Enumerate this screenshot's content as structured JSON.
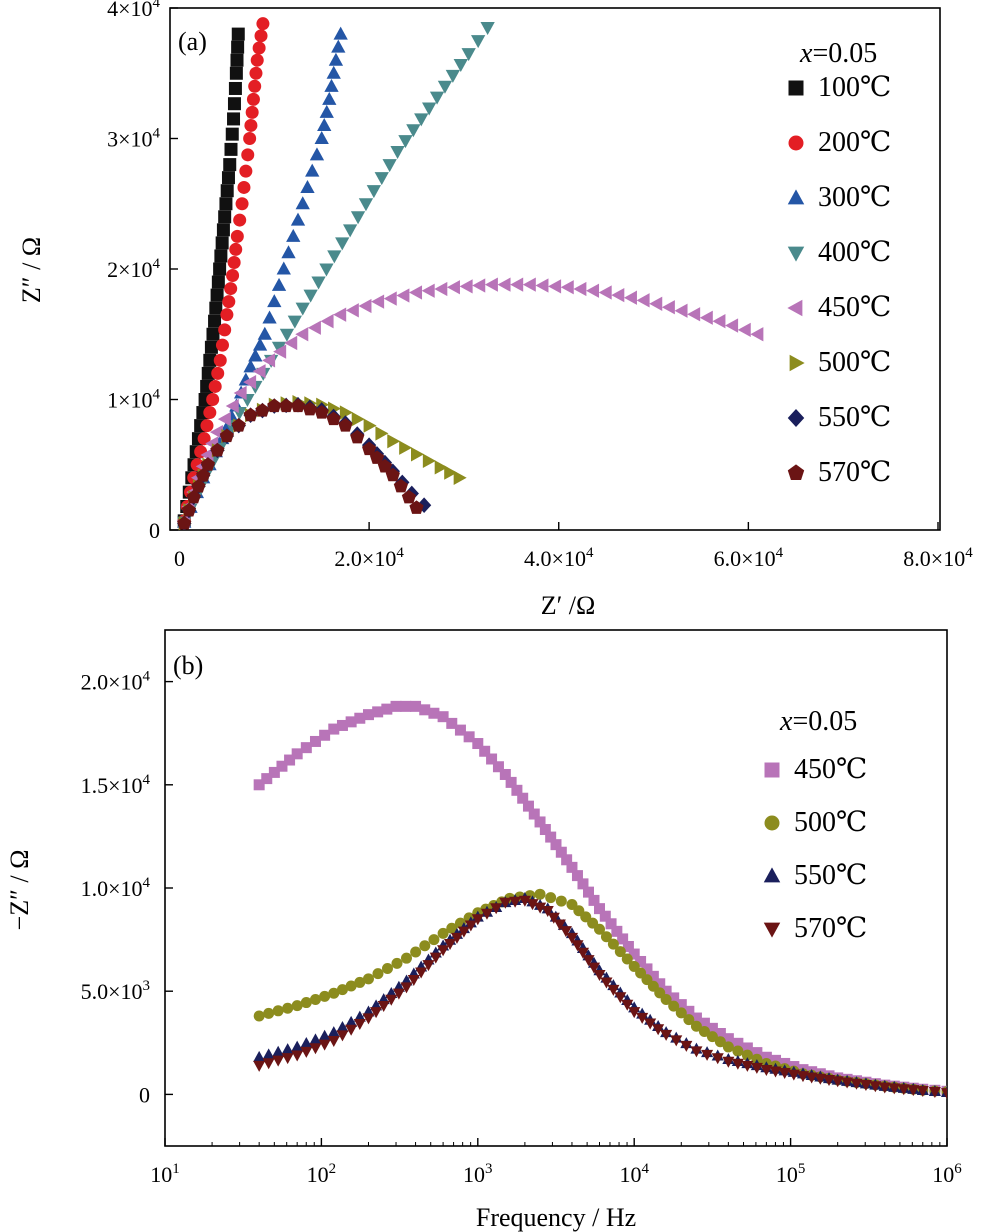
{
  "chart_data": [
    {
      "type": "scatter",
      "panel_label": "(a)",
      "xlabel": "Z′ /Ω",
      "ylabel": "Z″ / Ω",
      "xlim": [
        -1000,
        80000
      ],
      "ylim": [
        0,
        40000
      ],
      "x_ticks": [
        0,
        20000,
        40000,
        60000,
        80000
      ],
      "x_tick_labels": [
        "0",
        "2.0×10",
        "4.0×10",
        "6.0×10",
        "8.0×10"
      ],
      "x_tick_exps": [
        "",
        "4",
        "4",
        "4",
        "4"
      ],
      "y_ticks": [
        0,
        10000,
        20000,
        30000,
        40000
      ],
      "y_tick_labels": [
        "0",
        "1×10",
        "2×10",
        "3×10",
        "4×10"
      ],
      "y_tick_exps": [
        "",
        "4",
        "4",
        "4",
        "4"
      ],
      "legend_title": "x=0.05",
      "legend_position": "right",
      "series": [
        {
          "name": "100℃",
          "marker": "square",
          "color": "#111111",
          "points": [
            [
              500,
              700
            ],
            [
              1300,
              4000
            ],
            [
              2000,
              7000
            ],
            [
              2700,
              10000
            ],
            [
              3200,
              13000
            ],
            [
              3700,
              16000
            ],
            [
              4100,
              19000
            ],
            [
              4500,
              22000
            ],
            [
              4900,
              25000
            ],
            [
              5300,
              28000
            ],
            [
              5700,
              31500
            ],
            [
              6000,
              35000
            ],
            [
              6200,
              38000
            ]
          ]
        },
        {
          "name": "200℃",
          "marker": "circle",
          "color": "#e31e24",
          "points": [
            [
              500,
              700
            ],
            [
              1500,
              4000
            ],
            [
              2600,
              7000
            ],
            [
              3500,
              10000
            ],
            [
              4300,
              13000
            ],
            [
              5000,
              16500
            ],
            [
              5600,
              19500
            ],
            [
              6100,
              22500
            ],
            [
              6600,
              25000
            ],
            [
              7000,
              27500
            ],
            [
              7400,
              30000
            ],
            [
              7800,
              33000
            ],
            [
              8200,
              36000
            ],
            [
              8800,
              38800
            ]
          ]
        },
        {
          "name": "300℃",
          "marker": "triangle-up",
          "color": "#2456a6",
          "points": [
            [
              500,
              600
            ],
            [
              2500,
              4000
            ],
            [
              4500,
              7000
            ],
            [
              6000,
              9500
            ],
            [
              7500,
              12500
            ],
            [
              9000,
              15000
            ],
            [
              10000,
              17500
            ],
            [
              11000,
              20000
            ],
            [
              12000,
              22500
            ],
            [
              13000,
              25000
            ],
            [
              14000,
              27500
            ],
            [
              15000,
              30000
            ],
            [
              15800,
              33000
            ],
            [
              16500,
              36000
            ],
            [
              17000,
              38000
            ]
          ]
        },
        {
          "name": "400℃",
          "marker": "triangle-down",
          "color": "#4a8a8c",
          "points": [
            [
              500,
              600
            ],
            [
              3000,
              4500
            ],
            [
              5500,
              8000
            ],
            [
              8000,
              11000
            ],
            [
              10500,
              14000
            ],
            [
              13000,
              17000
            ],
            [
              15500,
              20000
            ],
            [
              18000,
              23000
            ],
            [
              20500,
              26000
            ],
            [
              23000,
              29000
            ],
            [
              25500,
              31500
            ],
            [
              28000,
              34000
            ],
            [
              30500,
              36500
            ],
            [
              32500,
              38500
            ]
          ]
        },
        {
          "name": "450℃",
          "marker": "triangle-left",
          "color": "#b874b8",
          "points": [
            [
              500,
              700
            ],
            [
              2000,
              4000
            ],
            [
              4000,
              7500
            ],
            [
              6500,
              10500
            ],
            [
              9500,
              13000
            ],
            [
              13000,
              15000
            ],
            [
              17000,
              16500
            ],
            [
              21000,
              17500
            ],
            [
              25000,
              18200
            ],
            [
              29000,
              18600
            ],
            [
              33000,
              18800
            ],
            [
              37000,
              18800
            ],
            [
              41000,
              18600
            ],
            [
              45000,
              18200
            ],
            [
              49000,
              17600
            ],
            [
              53000,
              16800
            ],
            [
              57000,
              16000
            ],
            [
              61000,
              15000
            ]
          ]
        },
        {
          "name": "500℃",
          "marker": "triangle-right",
          "color": "#8c8c1e",
          "points": [
            [
              500,
              500
            ],
            [
              1500,
              2500
            ],
            [
              3000,
              5000
            ],
            [
              5000,
              7200
            ],
            [
              7500,
              8800
            ],
            [
              10000,
              9600
            ],
            [
              12500,
              9800
            ],
            [
              15000,
              9600
            ],
            [
              17500,
              9000
            ],
            [
              20000,
              8000
            ],
            [
              22500,
              6800
            ],
            [
              25000,
              5800
            ],
            [
              27500,
              4800
            ],
            [
              29500,
              4000
            ]
          ]
        },
        {
          "name": "550℃",
          "marker": "diamond",
          "color": "#1a1f5c",
          "points": [
            [
              500,
              500
            ],
            [
              1500,
              2500
            ],
            [
              3000,
              5000
            ],
            [
              5000,
              7200
            ],
            [
              7500,
              8800
            ],
            [
              10000,
              9500
            ],
            [
              12500,
              9600
            ],
            [
              15000,
              9200
            ],
            [
              17500,
              8200
            ],
            [
              20000,
              6500
            ],
            [
              22500,
              4500
            ],
            [
              24500,
              2800
            ],
            [
              25800,
              1900
            ]
          ]
        },
        {
          "name": "570℃",
          "marker": "pentagon",
          "color": "#6b1414",
          "points": [
            [
              500,
              500
            ],
            [
              1500,
              2500
            ],
            [
              3000,
              5000
            ],
            [
              5000,
              7200
            ],
            [
              7500,
              8800
            ],
            [
              10000,
              9500
            ],
            [
              12500,
              9500
            ],
            [
              15000,
              9000
            ],
            [
              17500,
              8000
            ],
            [
              20000,
              6200
            ],
            [
              22500,
              4200
            ],
            [
              24200,
              2500
            ],
            [
              25000,
              1700
            ]
          ]
        }
      ]
    },
    {
      "type": "scatter",
      "panel_label": "(b)",
      "xlabel": "Frequency / Hz",
      "ylabel": "−Z″ / Ω",
      "x_scale": "log",
      "xlim": [
        10,
        1000000
      ],
      "ylim": [
        -2500,
        22500
      ],
      "x_ticks": [
        10,
        100,
        1000,
        10000,
        100000,
        1000000
      ],
      "x_tick_labels": [
        "10",
        "10",
        "10",
        "10",
        "10",
        "10"
      ],
      "x_tick_exps": [
        "1",
        "2",
        "3",
        "4",
        "5",
        "6"
      ],
      "y_ticks": [
        0,
        5000,
        10000,
        15000,
        20000
      ],
      "y_tick_labels": [
        "0",
        "5.0×10",
        "1.0×10",
        "1.5×10",
        "2.0×10"
      ],
      "y_tick_exps": [
        "",
        "3",
        "4",
        "4",
        "4"
      ],
      "legend_title": "x=0.05",
      "legend_position": "right",
      "series": [
        {
          "name": "450℃",
          "marker": "square",
          "color": "#b874b8",
          "points": [
            [
              40,
              15000
            ],
            [
              70,
              16500
            ],
            [
              120,
              17700
            ],
            [
              200,
              18400
            ],
            [
              300,
              18800
            ],
            [
              400,
              18800
            ],
            [
              600,
              18300
            ],
            [
              1000,
              17000
            ],
            [
              1500,
              15500
            ],
            [
              2500,
              13200
            ],
            [
              4000,
              11000
            ],
            [
              6000,
              9000
            ],
            [
              10000,
              6800
            ],
            [
              16000,
              5000
            ],
            [
              25000,
              3700
            ],
            [
              40000,
              2700
            ],
            [
              70000,
              1800
            ],
            [
              120000,
              1200
            ],
            [
              200000,
              800
            ],
            [
              400000,
              450
            ],
            [
              700000,
              250
            ],
            [
              1000000,
              150
            ]
          ]
        },
        {
          "name": "500℃",
          "marker": "circle",
          "color": "#8c8c1e",
          "points": [
            [
              40,
              3800
            ],
            [
              70,
              4300
            ],
            [
              120,
              4900
            ],
            [
              200,
              5600
            ],
            [
              350,
              6600
            ],
            [
              600,
              7800
            ],
            [
              1000,
              8800
            ],
            [
              1600,
              9500
            ],
            [
              2500,
              9700
            ],
            [
              4000,
              9200
            ],
            [
              6000,
              8000
            ],
            [
              10000,
              6200
            ],
            [
              16000,
              4600
            ],
            [
              25000,
              3300
            ],
            [
              40000,
              2300
            ],
            [
              70000,
              1500
            ],
            [
              120000,
              1000
            ],
            [
              200000,
              700
            ],
            [
              400000,
              400
            ],
            [
              700000,
              200
            ],
            [
              1000000,
              130
            ]
          ]
        },
        {
          "name": "550℃",
          "marker": "triangle-up",
          "color": "#1a1f5c",
          "points": [
            [
              40,
              1800
            ],
            [
              70,
              2300
            ],
            [
              120,
              3000
            ],
            [
              200,
              4000
            ],
            [
              350,
              5500
            ],
            [
              600,
              7200
            ],
            [
              1000,
              8600
            ],
            [
              1500,
              9300
            ],
            [
              2000,
              9500
            ],
            [
              2800,
              9000
            ],
            [
              4000,
              7800
            ],
            [
              6000,
              6000
            ],
            [
              10000,
              4200
            ],
            [
              16000,
              3000
            ],
            [
              25000,
              2200
            ],
            [
              40000,
              1700
            ],
            [
              70000,
              1300
            ],
            [
              120000,
              1000
            ],
            [
              200000,
              700
            ],
            [
              400000,
              400
            ],
            [
              700000,
              200
            ],
            [
              1000000,
              100
            ]
          ]
        },
        {
          "name": "570℃",
          "marker": "triangle-down",
          "color": "#6b1414",
          "points": [
            [
              40,
              1400
            ],
            [
              70,
              1900
            ],
            [
              120,
              2600
            ],
            [
              200,
              3700
            ],
            [
              350,
              5200
            ],
            [
              600,
              7000
            ],
            [
              1000,
              8500
            ],
            [
              1500,
              9300
            ],
            [
              2000,
              9400
            ],
            [
              2800,
              8900
            ],
            [
              4000,
              7600
            ],
            [
              6000,
              5800
            ],
            [
              10000,
              4000
            ],
            [
              16000,
              2900
            ],
            [
              25000,
              2100
            ],
            [
              40000,
              1600
            ],
            [
              70000,
              1200
            ],
            [
              120000,
              900
            ],
            [
              200000,
              650
            ],
            [
              400000,
              350
            ],
            [
              700000,
              180
            ],
            [
              1000000,
              80
            ]
          ]
        }
      ]
    }
  ]
}
